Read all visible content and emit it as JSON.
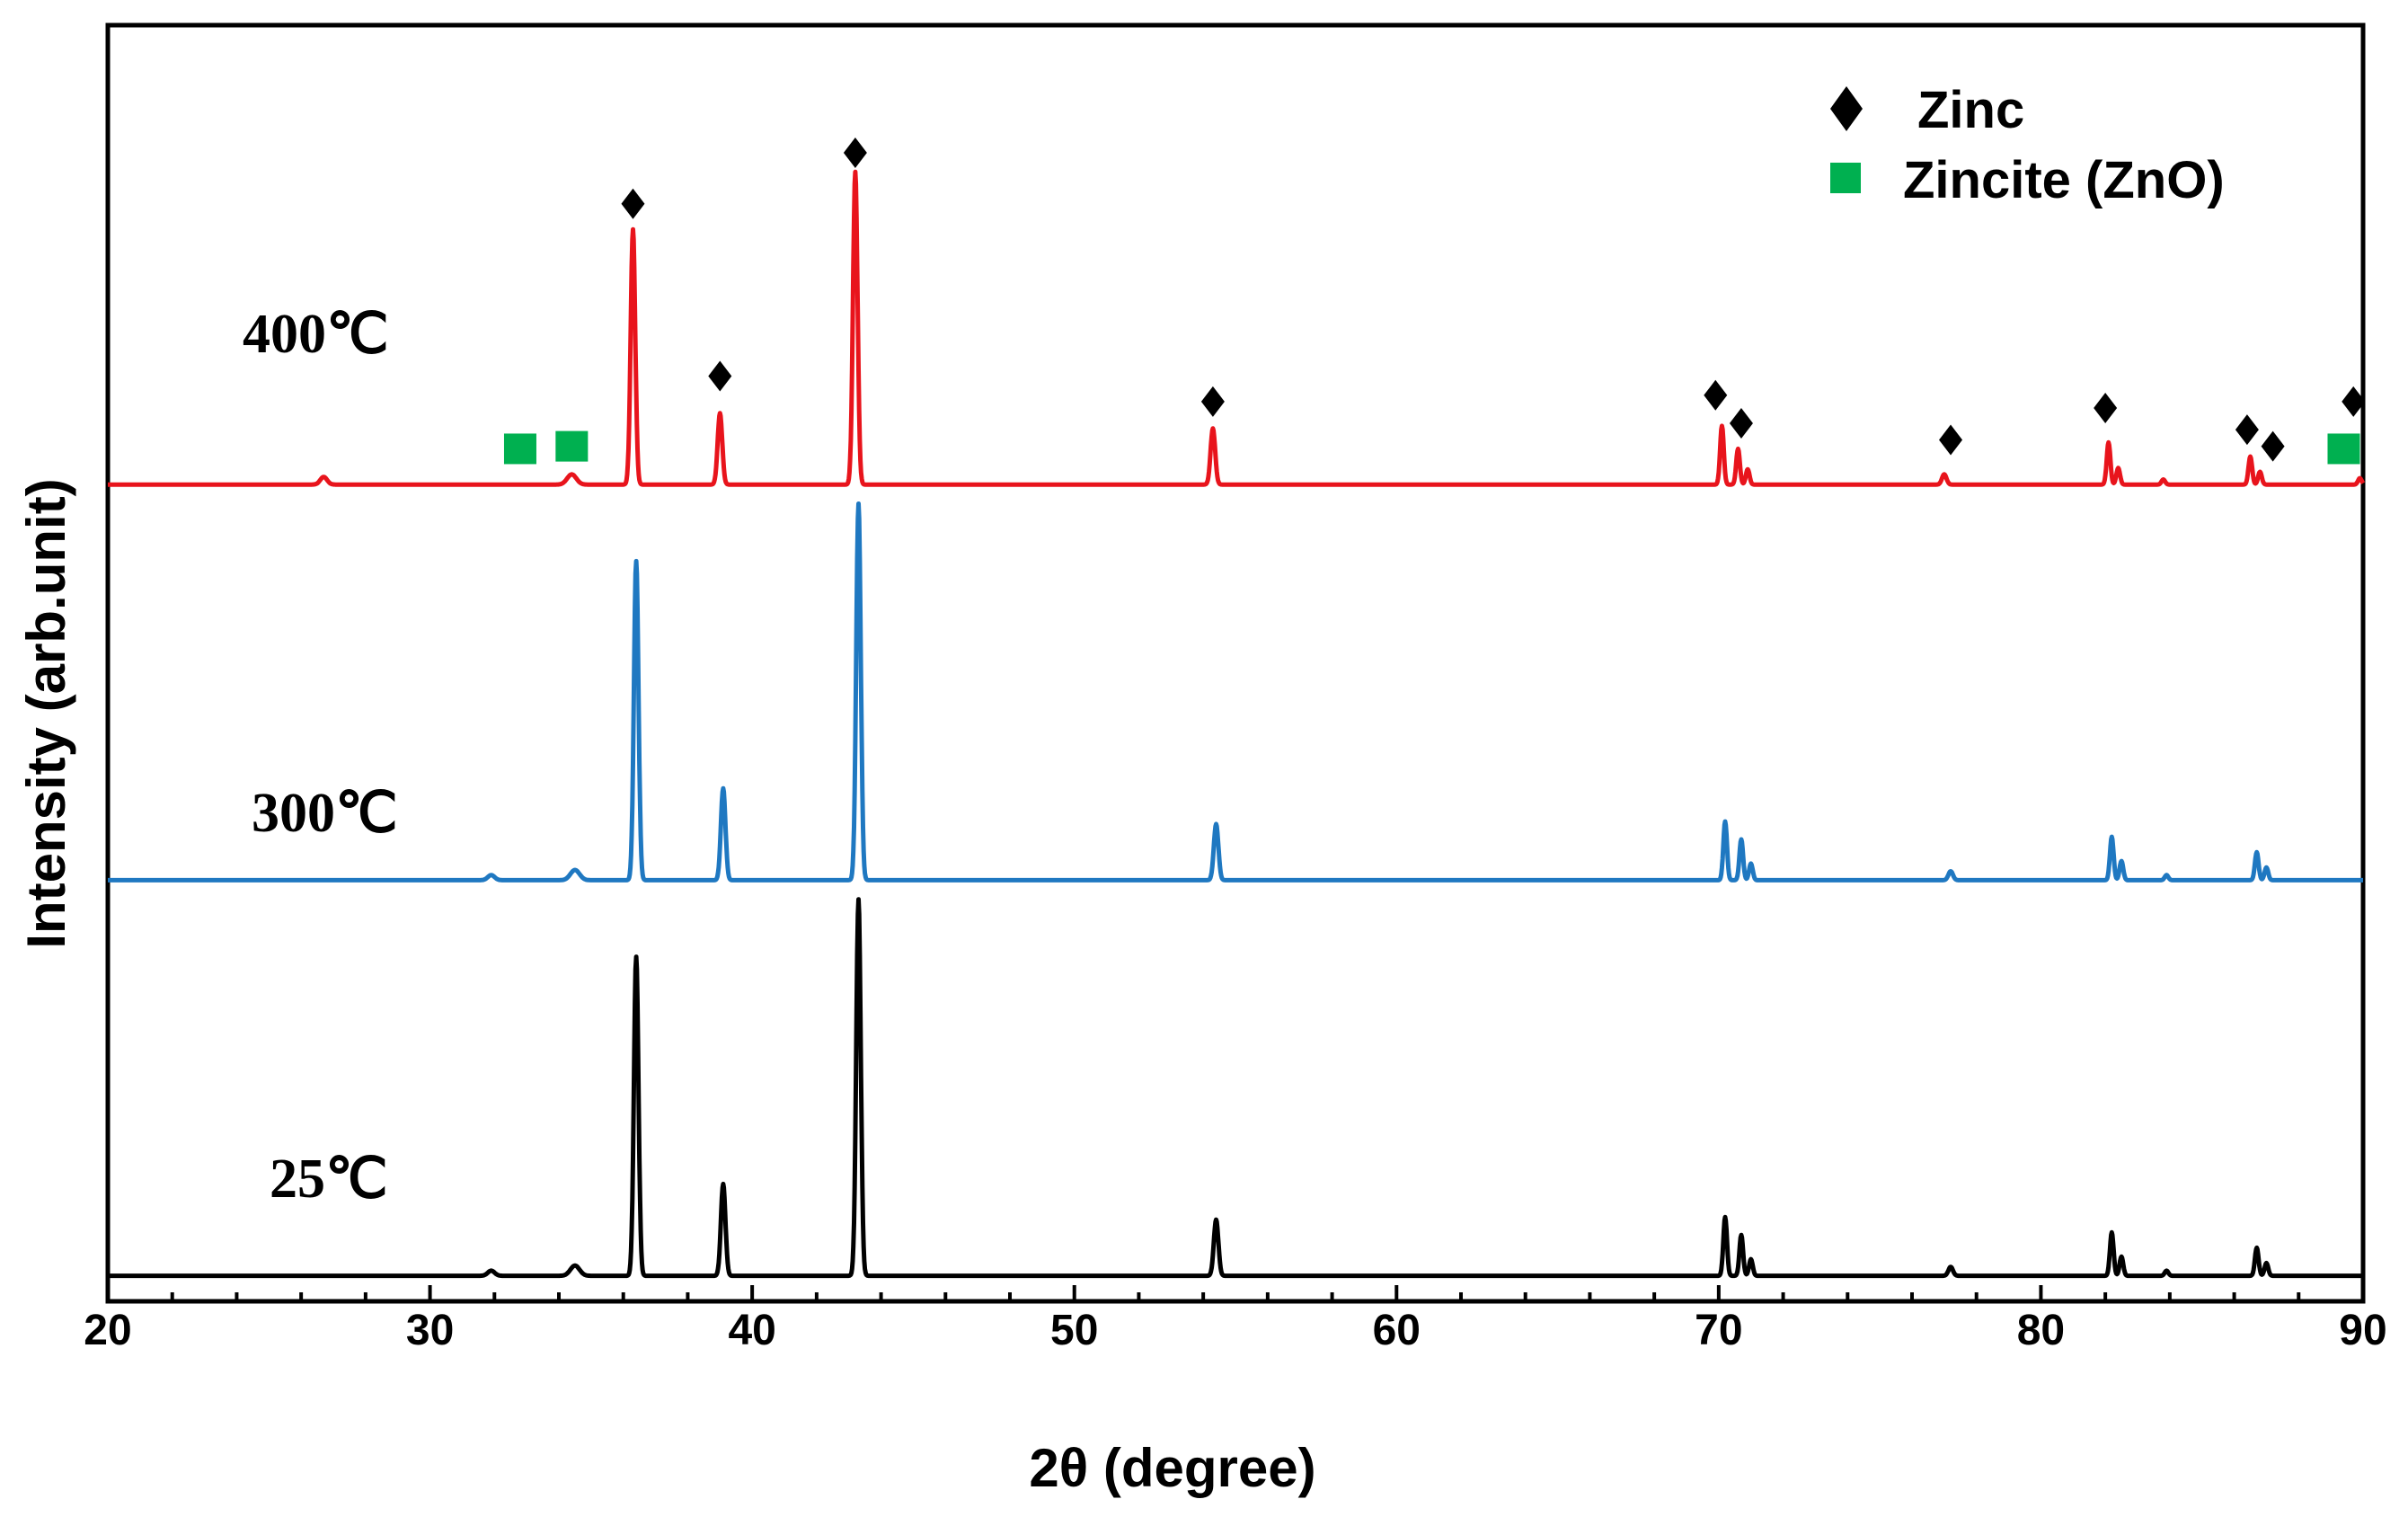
{
  "chart_data": {
    "type": "line",
    "xlabel": "2θ (degree)",
    "ylabel": "Intensity (arb.unit)",
    "xlim": [
      20,
      90
    ],
    "xticks": [
      "20",
      "30",
      "40",
      "50",
      "60",
      "70",
      "80",
      "90"
    ],
    "yticks_shown": false,
    "legend": {
      "position": "top-right",
      "entries": [
        {
          "label": "Zinc",
          "marker": "diamond",
          "color": "#000000"
        },
        {
          "label": "Zincite (ZnO)",
          "marker": "square",
          "color": "#00b050"
        }
      ]
    },
    "series": [
      {
        "name": "400℃",
        "color": "#e8141c",
        "baseline": 4.6,
        "peaks": [
          {
            "x": 26.7,
            "h": 0.06,
            "w": 0.15
          },
          {
            "x": 34.4,
            "h": 0.08,
            "w": 0.2
          },
          {
            "x": 36.3,
            "h": 2.0,
            "w": 0.1
          },
          {
            "x": 39.0,
            "h": 0.56,
            "w": 0.1
          },
          {
            "x": 43.2,
            "h": 2.45,
            "w": 0.1
          },
          {
            "x": 54.3,
            "h": 0.44,
            "w": 0.1
          },
          {
            "x": 70.1,
            "h": 0.46,
            "w": 0.08
          },
          {
            "x": 70.6,
            "h": 0.28,
            "w": 0.08
          },
          {
            "x": 70.9,
            "h": 0.12,
            "w": 0.08
          },
          {
            "x": 77.0,
            "h": 0.08,
            "w": 0.1
          },
          {
            "x": 82.1,
            "h": 0.33,
            "w": 0.08
          },
          {
            "x": 82.4,
            "h": 0.13,
            "w": 0.08
          },
          {
            "x": 83.8,
            "h": 0.04,
            "w": 0.08
          },
          {
            "x": 86.5,
            "h": 0.22,
            "w": 0.08
          },
          {
            "x": 86.8,
            "h": 0.1,
            "w": 0.08
          },
          {
            "x": 89.9,
            "h": 0.05,
            "w": 0.08
          }
        ]
      },
      {
        "name": "300℃",
        "color": "#1f78c1",
        "baseline": 1.5,
        "peaks": [
          {
            "x": 31.9,
            "h": 0.04,
            "w": 0.15
          },
          {
            "x": 34.5,
            "h": 0.08,
            "w": 0.2
          },
          {
            "x": 36.4,
            "h": 2.5,
            "w": 0.1
          },
          {
            "x": 39.1,
            "h": 0.72,
            "w": 0.1
          },
          {
            "x": 43.3,
            "h": 2.95,
            "w": 0.1
          },
          {
            "x": 54.4,
            "h": 0.44,
            "w": 0.1
          },
          {
            "x": 70.2,
            "h": 0.46,
            "w": 0.08
          },
          {
            "x": 70.7,
            "h": 0.32,
            "w": 0.08
          },
          {
            "x": 71.0,
            "h": 0.13,
            "w": 0.08
          },
          {
            "x": 77.2,
            "h": 0.07,
            "w": 0.1
          },
          {
            "x": 82.2,
            "h": 0.34,
            "w": 0.08
          },
          {
            "x": 82.5,
            "h": 0.15,
            "w": 0.08
          },
          {
            "x": 83.9,
            "h": 0.04,
            "w": 0.08
          },
          {
            "x": 86.7,
            "h": 0.22,
            "w": 0.08
          },
          {
            "x": 87.0,
            "h": 0.1,
            "w": 0.08
          }
        ]
      },
      {
        "name": "25℃",
        "color": "#000000",
        "baseline": -1.6,
        "peaks": [
          {
            "x": 31.9,
            "h": 0.04,
            "w": 0.15
          },
          {
            "x": 34.5,
            "h": 0.08,
            "w": 0.2
          },
          {
            "x": 36.4,
            "h": 2.5,
            "w": 0.1
          },
          {
            "x": 39.1,
            "h": 0.72,
            "w": 0.1
          },
          {
            "x": 43.3,
            "h": 2.95,
            "w": 0.1
          },
          {
            "x": 54.4,
            "h": 0.44,
            "w": 0.1
          },
          {
            "x": 70.2,
            "h": 0.46,
            "w": 0.08
          },
          {
            "x": 70.7,
            "h": 0.32,
            "w": 0.08
          },
          {
            "x": 71.0,
            "h": 0.13,
            "w": 0.08
          },
          {
            "x": 77.2,
            "h": 0.07,
            "w": 0.1
          },
          {
            "x": 82.2,
            "h": 0.34,
            "w": 0.08
          },
          {
            "x": 82.5,
            "h": 0.15,
            "w": 0.08
          },
          {
            "x": 83.9,
            "h": 0.04,
            "w": 0.08
          },
          {
            "x": 86.7,
            "h": 0.22,
            "w": 0.08
          },
          {
            "x": 87.0,
            "h": 0.1,
            "w": 0.08
          }
        ]
      }
    ],
    "ylim": [
      -1.8,
      8.2
    ],
    "annotations": {
      "zinc_markers": [
        {
          "x": 36.3,
          "y": 6.8
        },
        {
          "x": 39.0,
          "y": 5.45
        },
        {
          "x": 43.2,
          "y": 7.2
        },
        {
          "x": 54.3,
          "y": 5.25
        },
        {
          "x": 69.9,
          "y": 5.3
        },
        {
          "x": 70.7,
          "y": 5.08
        },
        {
          "x": 77.2,
          "y": 4.95
        },
        {
          "x": 82.0,
          "y": 5.2
        },
        {
          "x": 86.4,
          "y": 5.03
        },
        {
          "x": 87.2,
          "y": 4.9
        },
        {
          "x": 89.7,
          "y": 5.25
        }
      ],
      "zincite_markers": [
        {
          "x": 32.8,
          "y": 4.88
        },
        {
          "x": 34.4,
          "y": 4.9
        },
        {
          "x": 89.4,
          "y": 4.88
        }
      ]
    }
  }
}
